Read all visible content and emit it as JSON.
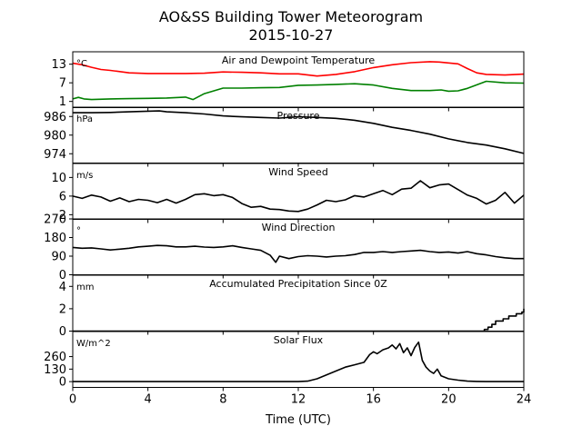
{
  "figure": {
    "title": "AO&SS Building Tower Meteorogram",
    "subtitle": "2015-10-27",
    "xlabel": "Time (UTC)",
    "xticks": [
      "0",
      "4",
      "8",
      "12",
      "16",
      "20",
      "24"
    ],
    "xlim": [
      0,
      24
    ]
  },
  "chart_data": [
    {
      "type": "line",
      "title": "Air and Dewpoint Temperature",
      "ylabel": "°C",
      "ylim": [
        -1,
        17
      ],
      "yticks": [
        1,
        7,
        13
      ],
      "grid": false,
      "series": [
        {
          "color": "#ff0000",
          "x": [
            0,
            0.5,
            1,
            1.5,
            2,
            3,
            4,
            5,
            6,
            7,
            8,
            9,
            10,
            11,
            12,
            13,
            14,
            15,
            16,
            17,
            18,
            19,
            19.5,
            20,
            20.5,
            21,
            21.5,
            22,
            23,
            24
          ],
          "y": [
            13.3,
            12.8,
            12.0,
            11.3,
            11.0,
            10.2,
            10.0,
            10.0,
            10.0,
            10.1,
            10.5,
            10.4,
            10.2,
            9.9,
            9.9,
            9.2,
            9.7,
            10.6,
            11.9,
            12.8,
            13.5,
            13.8,
            13.7,
            13.4,
            13.1,
            11.6,
            10.2,
            9.7,
            9.5,
            9.8
          ]
        },
        {
          "color": "#008000",
          "x": [
            0,
            0.3,
            0.6,
            1,
            2,
            3,
            4,
            5,
            6,
            6.4,
            7,
            8,
            9,
            10,
            11,
            12,
            13,
            14,
            15,
            16,
            17,
            18,
            19,
            19.6,
            20,
            20.5,
            21,
            22,
            23,
            24
          ],
          "y": [
            1.8,
            2.3,
            1.8,
            1.6,
            1.8,
            1.9,
            2.0,
            2.1,
            2.4,
            1.6,
            3.5,
            5.3,
            5.3,
            5.4,
            5.5,
            6.2,
            6.3,
            6.5,
            6.7,
            6.3,
            5.2,
            4.5,
            4.5,
            4.7,
            4.3,
            4.4,
            5.2,
            7.5,
            7.0,
            6.9
          ]
        }
      ]
    },
    {
      "type": "line",
      "title": "Pressure",
      "ylabel": "hPa",
      "ylim": [
        971,
        989
      ],
      "yticks": [
        974,
        980,
        986
      ],
      "grid": false,
      "series": [
        {
          "color": "#000000",
          "x": [
            0,
            1,
            2,
            3,
            4,
            4.6,
            5,
            6,
            7,
            8,
            9,
            10,
            11,
            12,
            13,
            14,
            15,
            16,
            17,
            18,
            19,
            20,
            21,
            22,
            23,
            24
          ],
          "y": [
            987.2,
            987.2,
            987.3,
            987.5,
            987.7,
            987.8,
            987.5,
            987.2,
            986.8,
            986.2,
            985.9,
            985.7,
            985.5,
            985.9,
            985.7,
            985.4,
            984.8,
            983.8,
            982.5,
            981.5,
            980.3,
            978.8,
            977.6,
            976.8,
            975.6,
            974.1
          ]
        }
      ]
    },
    {
      "type": "line",
      "title": "Wind Speed",
      "ylabel": "m/s",
      "ylim": [
        1,
        13
      ],
      "yticks": [
        2,
        6,
        10
      ],
      "grid": false,
      "series": [
        {
          "color": "#000000",
          "x": [
            0,
            0.5,
            1,
            1.5,
            2,
            2.5,
            3,
            3.5,
            4,
            4.5,
            5,
            5.5,
            6,
            6.5,
            7,
            7.5,
            8,
            8.5,
            9,
            9.5,
            10,
            10.5,
            11,
            11.5,
            12,
            12.5,
            13,
            13.5,
            14,
            14.5,
            15,
            15.5,
            16,
            16.5,
            17,
            17.5,
            18,
            18.5,
            19,
            19.5,
            20,
            20.5,
            21,
            21.5,
            22,
            22.5,
            23,
            23.5,
            24
          ],
          "y": [
            6,
            5.5,
            6.2,
            5.8,
            4.9,
            5.6,
            4.8,
            5.3,
            5.1,
            4.6,
            5.3,
            4.5,
            5.3,
            6.3,
            6.5,
            6.1,
            6.3,
            5.7,
            4.4,
            3.6,
            3.8,
            3.2,
            3.1,
            2.8,
            2.7,
            3.2,
            4.1,
            5.1,
            4.8,
            5.2,
            6.1,
            5.8,
            6.5,
            7.2,
            6.3,
            7.5,
            7.7,
            9.3,
            7.8,
            8.4,
            8.6,
            7.4,
            6.2,
            5.5,
            4.3,
            5.1,
            6.8,
            4.5,
            6.2
          ]
        }
      ]
    },
    {
      "type": "line",
      "title": "Wind Direction",
      "ylabel": "°",
      "ylim": [
        0,
        270
      ],
      "yticks": [
        0,
        90,
        180,
        270
      ],
      "grid": false,
      "series": [
        {
          "color": "#000000",
          "x": [
            0,
            0.5,
            1,
            1.5,
            2,
            2.5,
            3,
            3.5,
            4,
            4.5,
            5,
            5.5,
            6,
            6.5,
            7,
            7.5,
            8,
            8.5,
            9,
            9.5,
            10,
            10.5,
            10.8,
            11,
            11.5,
            12,
            12.5,
            13,
            13.5,
            14,
            14.5,
            15,
            15.5,
            16,
            16.5,
            17,
            17.5,
            18,
            18.5,
            19,
            19.5,
            20,
            20.5,
            21,
            21.5,
            22,
            22.5,
            23,
            23.5,
            24
          ],
          "y": [
            132,
            128,
            130,
            125,
            120,
            124,
            128,
            135,
            138,
            142,
            140,
            135,
            135,
            138,
            134,
            132,
            135,
            140,
            132,
            125,
            118,
            95,
            60,
            90,
            78,
            88,
            92,
            90,
            86,
            90,
            92,
            98,
            108,
            108,
            112,
            108,
            112,
            115,
            118,
            112,
            108,
            110,
            105,
            112,
            102,
            96,
            88,
            82,
            78,
            78
          ]
        }
      ]
    },
    {
      "type": "line",
      "title": "Accumulated Precipitation Since 0Z",
      "ylabel": "mm",
      "ylim": [
        0,
        5
      ],
      "yticks": [
        0,
        2,
        4
      ],
      "grid": false,
      "series": [
        {
          "color": "#000000",
          "step": true,
          "x": [
            0,
            21.7,
            21.9,
            22.1,
            22.3,
            22.5,
            22.9,
            23.2,
            23.6,
            23.9,
            24
          ],
          "y": [
            0,
            0,
            0.15,
            0.35,
            0.6,
            0.9,
            1.1,
            1.35,
            1.55,
            1.7,
            2.0
          ]
        }
      ]
    },
    {
      "type": "line",
      "title": "Solar Flux",
      "ylabel": "W/m^2",
      "ylim": [
        -60,
        520
      ],
      "yticks": [
        0,
        130,
        260
      ],
      "grid": false,
      "series": [
        {
          "color": "#000000",
          "x": [
            0,
            12,
            12.5,
            13,
            13.5,
            14,
            14.5,
            15,
            15.5,
            15.8,
            16,
            16.2,
            16.5,
            16.8,
            17,
            17.2,
            17.4,
            17.6,
            17.8,
            18,
            18.2,
            18.4,
            18.6,
            18.8,
            19,
            19.2,
            19.4,
            19.6,
            19.8,
            20,
            20.5,
            21,
            21.5,
            22,
            23,
            24
          ],
          "y": [
            0,
            0,
            5,
            30,
            70,
            110,
            150,
            175,
            200,
            280,
            310,
            290,
            330,
            350,
            380,
            340,
            395,
            300,
            350,
            270,
            355,
            410,
            220,
            150,
            110,
            85,
            130,
            60,
            45,
            30,
            15,
            5,
            2,
            0,
            0,
            0
          ]
        }
      ]
    }
  ]
}
